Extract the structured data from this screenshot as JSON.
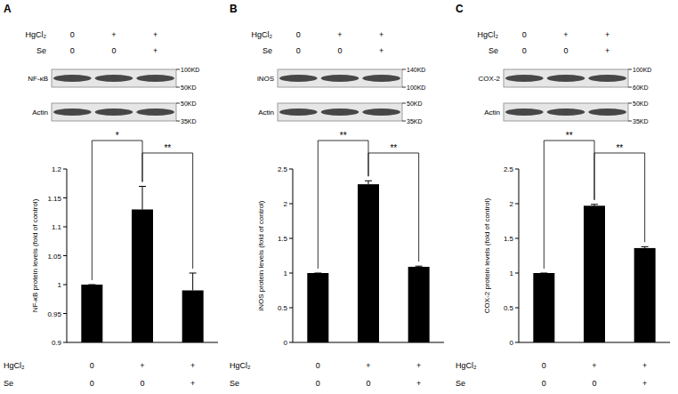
{
  "chart_data": [
    {
      "type": "bar",
      "title": "A",
      "y_label": "NF-κB protein levels (fold of control)",
      "categories": [
        null,
        null,
        null
      ],
      "treatments": [
        {
          "name": "HgCl₂",
          "values": [
            "0",
            "+",
            "+"
          ]
        },
        {
          "name": "Se",
          "values": [
            "0",
            "0",
            "+"
          ]
        }
      ],
      "values": [
        1,
        1.13,
        0.99
      ],
      "errors": [
        0,
        0.04,
        0.03
      ],
      "color": "#000000",
      "ylim": [
        0.9,
        1.2
      ],
      "yticks": [
        0.9,
        0.95,
        1,
        1.05,
        1.1,
        1.15,
        1.2
      ],
      "significance": [
        {
          "from": 0,
          "to": 1,
          "label": "*"
        },
        {
          "from": 1,
          "to": 2,
          "label": "**"
        }
      ],
      "blot": [
        {
          "label": "NF-κB",
          "markers": [
            {
              "value": 100,
              "label": "100KD"
            },
            {
              "value": 50,
              "label": "50KD"
            }
          ]
        },
        {
          "label": "Actin",
          "markers": [
            {
              "value": 50,
              "label": "50KD"
            },
            {
              "value": 35,
              "label": "35KD"
            }
          ]
        }
      ]
    },
    {
      "type": "bar",
      "title": "B",
      "y_label": "iNOS protein levels (fold of control)",
      "categories": [
        null,
        null,
        null
      ],
      "treatments": [
        {
          "name": "HgCl₂",
          "values": [
            "0",
            "+",
            "+"
          ]
        },
        {
          "name": "Se",
          "values": [
            "0",
            "0",
            "+"
          ]
        }
      ],
      "values": [
        1,
        2.28,
        1.09
      ],
      "errors": [
        0,
        0.05,
        0.01
      ],
      "color": "#000000",
      "ylim": [
        0,
        2.5
      ],
      "yticks": [
        0,
        0.5,
        1,
        1.5,
        2,
        2.5
      ],
      "significance": [
        {
          "from": 0,
          "to": 1,
          "label": "**"
        },
        {
          "from": 1,
          "to": 2,
          "label": "**"
        }
      ],
      "blot": [
        {
          "label": "iNOS",
          "markers": [
            {
              "value": 140,
              "label": "140KD"
            },
            {
              "value": 100,
              "label": "100KD"
            }
          ]
        },
        {
          "label": "Actin",
          "markers": [
            {
              "value": 50,
              "label": "50KD"
            },
            {
              "value": 35,
              "label": "35KD"
            }
          ]
        }
      ]
    },
    {
      "type": "bar",
      "title": "C",
      "y_label": "COX-2 protein levels (fold of control)",
      "categories": [
        null,
        null,
        null
      ],
      "treatments": [
        {
          "name": "HgCl₂",
          "values": [
            "0",
            "+",
            "+"
          ]
        },
        {
          "name": "Se",
          "values": [
            "0",
            "0",
            "+"
          ]
        }
      ],
      "values": [
        1,
        1.97,
        1.36
      ],
      "errors": [
        0,
        0.02,
        0.02
      ],
      "color": "#000000",
      "ylim": [
        0,
        2.5
      ],
      "yticks": [
        0,
        0.5,
        1,
        1.5,
        2,
        2.5
      ],
      "significance": [
        {
          "from": 0,
          "to": 1,
          "label": "**"
        },
        {
          "from": 1,
          "to": 2,
          "label": "**"
        }
      ],
      "blot": [
        {
          "label": "COX-2",
          "markers": [
            {
              "value": 100,
              "label": "100KD"
            },
            {
              "value": 60,
              "label": "60KD"
            }
          ]
        },
        {
          "label": "Actin",
          "markers": [
            {
              "value": 50,
              "label": "50KD"
            },
            {
              "value": 35,
              "label": "35KD"
            }
          ]
        }
      ]
    }
  ]
}
